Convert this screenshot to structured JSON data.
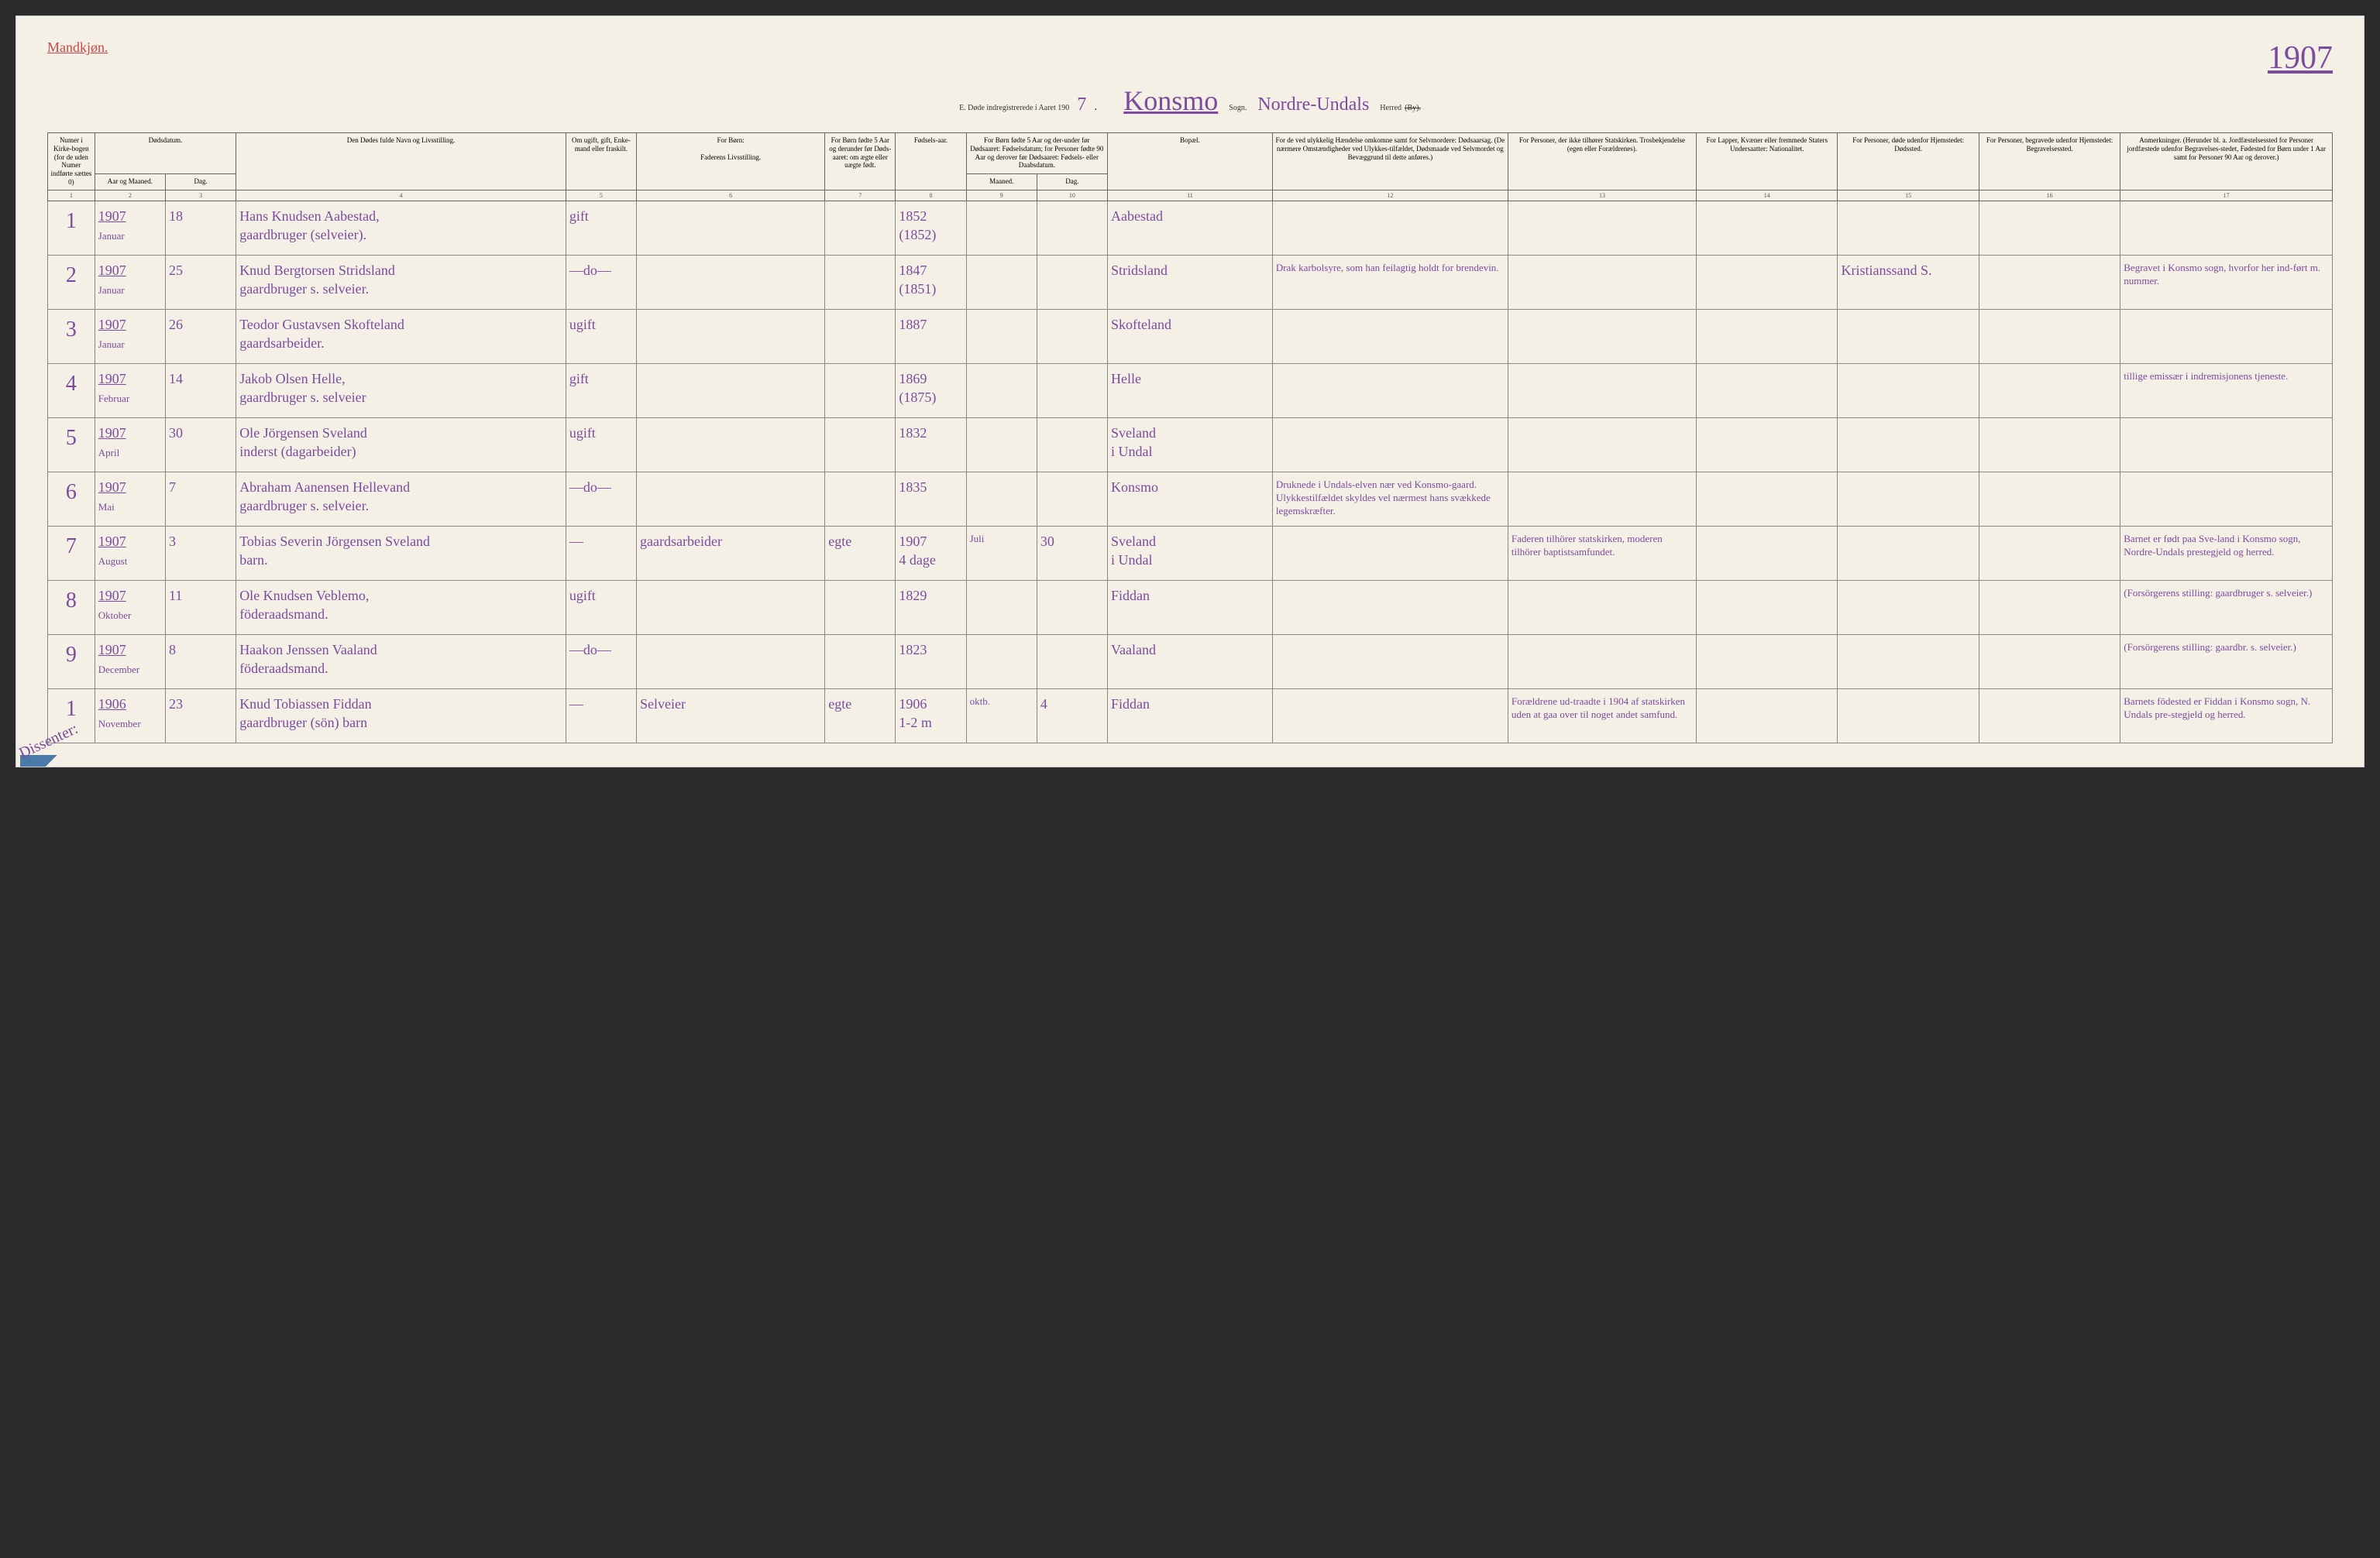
{
  "header": {
    "gender_label": "Mandkjøn.",
    "title_prefix": "E.  Døde indregistrerede i Aaret 190",
    "title_year_suffix": "7",
    "parish": "Konsmo",
    "sogn_label": "Sogn.",
    "district": "Nordre-Undals",
    "herred_label": "Herred",
    "by_struck": "(By).",
    "year_top": "1907"
  },
  "columns": {
    "c1": "Numer i Kirke-bogen (for de uden Numer indførte sættes 0)",
    "c2_header": "Dødsdatum.",
    "c2a": "Aar og Maaned.",
    "c2b": "Dag.",
    "c4": "Den Dødes fulde Navn og Livsstilling.",
    "c5": "Om ugift, gift, Enke-mand eller fraskilt.",
    "c6_top": "For Børn:",
    "c6": "Faderens Livsstilling.",
    "c7": "For Børn fødte 5 Aar og derunder før Døds-aaret: om ægte eller uægte født.",
    "c8": "Fødsels-aar.",
    "c9_10": "For Børn fødte 5 Aar og der-under før Dødsaaret: Fødselsdatum; for Personer fødte 90 Aar og derover før Dødsaaret: Fødsels- eller Daabsdatum.",
    "c9": "Maaned.",
    "c10": "Dag.",
    "c11": "Bopæl.",
    "c12": "For de ved ulykkelig Hændelse omkomne samt for Selvmordere: Dødsaarsag. (De nærmere Omstændigheder ved Ulykkes-tilfældet, Dødsmaade ved Selvmordet og Bevæggrund til dette anføres.)",
    "c13": "For Personer, der ikke tilhører Statskirken. Trosbekjendelse (egen eller Forældrenes).",
    "c14": "For Lapper, Kvæner eller fremmede Staters Undersaatter: Nationalitet.",
    "c15": "For Personer, døde udenfor Hjemstedet: Dødssted.",
    "c16": "For Personer, begravede udenfor Hjemstedet: Begravelsessted.",
    "c17": "Anmerkninger. (Herunder bl. a. Jordfæstelsessted for Personer jordfæstede udenfor Begravelses-stedet, Fødested for Børn under 1 Aar samt for Personer 90 Aar og derover.)"
  },
  "col_nums": [
    "1",
    "2",
    "3",
    "4",
    "5",
    "6",
    "7",
    "8",
    "9",
    "10",
    "11",
    "12",
    "13",
    "14",
    "15",
    "16",
    "17"
  ],
  "rows": [
    {
      "num": "1",
      "year": "1907",
      "month": "Januar",
      "day": "18",
      "name": "Hans Knudsen Aabestad,\ngaardbruger (selveier).",
      "status": "gift",
      "father": "",
      "legit": "",
      "birth_year": "1852\n(1852)",
      "bm": "",
      "bd": "",
      "residence": "Aabestad",
      "cause": "",
      "faith": "",
      "nat": "",
      "death_place": "",
      "burial_place": "",
      "remarks": ""
    },
    {
      "num": "2",
      "year": "1907",
      "month": "Januar",
      "day": "25",
      "name": "Knud Bergtorsen Stridsland\ngaardbruger s. selveier.",
      "status": "—do—",
      "father": "",
      "legit": "",
      "birth_year": "1847\n(1851)",
      "bm": "",
      "bd": "",
      "residence": "Stridsland",
      "cause": "Drak karbolsyre, som han feilagtig holdt for brendevin.",
      "faith": "",
      "nat": "",
      "death_place": "Kristianssand S.",
      "burial_place": "",
      "remarks": "Begravet i Konsmo sogn, hvorfor her ind-ført m. nummer."
    },
    {
      "num": "3",
      "year": "1907",
      "month": "Januar",
      "day": "26",
      "name": "Teodor Gustavsen Skofteland\ngaardsarbeider.",
      "status": "ugift",
      "father": "",
      "legit": "",
      "birth_year": "1887",
      "bm": "",
      "bd": "",
      "residence": "Skofteland",
      "cause": "",
      "faith": "",
      "nat": "",
      "death_place": "",
      "burial_place": "",
      "remarks": ""
    },
    {
      "num": "4",
      "year": "1907",
      "month": "Februar",
      "day": "14",
      "name": "Jakob Olsen Helle,\ngaardbruger s. selveier",
      "status": "gift",
      "father": "",
      "legit": "",
      "birth_year": "1869\n(1875)",
      "bm": "",
      "bd": "",
      "residence": "Helle",
      "cause": "",
      "faith": "",
      "nat": "",
      "death_place": "",
      "burial_place": "",
      "remarks": "tillige emissær i indremisjonens tjeneste."
    },
    {
      "num": "5",
      "year": "1907",
      "month": "April",
      "day": "30",
      "name": "Ole Jörgensen Sveland\ninderst (dagarbeider)",
      "status": "ugift",
      "father": "",
      "legit": "",
      "birth_year": "1832",
      "bm": "",
      "bd": "",
      "residence": "Sveland\ni Undal",
      "cause": "",
      "faith": "",
      "nat": "",
      "death_place": "",
      "burial_place": "",
      "remarks": ""
    },
    {
      "num": "6",
      "year": "1907",
      "month": "Mai",
      "day": "7",
      "name": "Abraham Aanensen Hellevand\ngaardbruger s. selveier.",
      "status": "—do—",
      "father": "",
      "legit": "",
      "birth_year": "1835",
      "bm": "",
      "bd": "",
      "residence": "Konsmo",
      "cause": "Druknede i Undals-elven nær ved Konsmo-gaard. Ulykkestilfældet skyldes vel nærmest hans svækkede legemskræfter.",
      "faith": "",
      "nat": "",
      "death_place": "",
      "burial_place": "",
      "remarks": ""
    },
    {
      "num": "7",
      "year": "1907",
      "month": "August",
      "day": "3",
      "name": "Tobias Severin Jörgensen Sveland\nbarn.",
      "status": "—",
      "father": "gaardsarbeider",
      "legit": "egte",
      "birth_year": "1907\n4 dage",
      "bm": "Juli",
      "bd": "30",
      "residence": "Sveland\ni Undal",
      "cause": "",
      "faith": "Faderen tilhörer statskirken, moderen tilhörer baptistsamfundet.",
      "nat": "",
      "death_place": "",
      "burial_place": "",
      "remarks": "Barnet er født paa Sve-land i Konsmo sogn, Nordre-Undals prestegjeld og herred."
    },
    {
      "num": "8",
      "year": "1907",
      "month": "Oktober",
      "day": "11",
      "name": "Ole Knudsen Veblemo,\nföderaadsmand.",
      "status": "ugift",
      "father": "",
      "legit": "",
      "birth_year": "1829",
      "bm": "",
      "bd": "",
      "residence": "Fiddan",
      "cause": "",
      "faith": "",
      "nat": "",
      "death_place": "",
      "burial_place": "",
      "remarks": "(Forsörgerens stilling: gaardbruger s. selveier.)"
    },
    {
      "num": "9",
      "year": "1907",
      "month": "December",
      "day": "8",
      "name": "Haakon Jenssen Vaaland\nföderaadsmand.",
      "status": "—do—",
      "father": "",
      "legit": "",
      "birth_year": "1823",
      "bm": "",
      "bd": "",
      "residence": "Vaaland",
      "cause": "",
      "faith": "",
      "nat": "",
      "death_place": "",
      "burial_place": "",
      "remarks": "(Forsörgerens stilling: gaardbr. s. selveier.)"
    },
    {
      "num": "1",
      "year": "1906",
      "month": "November",
      "day": "23",
      "name": "Knud Tobiassen Fiddan\ngaardbruger (sön) barn",
      "status": "—",
      "father": "Selveier",
      "legit": "egte",
      "birth_year": "1906\n1-2 m",
      "bm": "oktb.",
      "bd": "4",
      "residence": "Fiddan",
      "cause": "",
      "faith": "Forældrene ud-traadte i 1904 af statskirken uden at gaa over til noget andet samfund.",
      "nat": "",
      "death_place": "",
      "burial_place": "",
      "remarks": "Barnets födested er Fiddan i Konsmo sogn, N. Undals pre-stegjeld og herred."
    }
  ],
  "dissenter_label": "Dissenter:",
  "styling": {
    "paper_bg": "#f5f0e6",
    "ink_handwritten": "#7a4b9e",
    "ink_red": "#c94747",
    "ink_printed": "#333333",
    "border_color": "#666666",
    "handwritten_fontsize": 18,
    "header_fontsize": 9,
    "title_fontsize": 36
  }
}
